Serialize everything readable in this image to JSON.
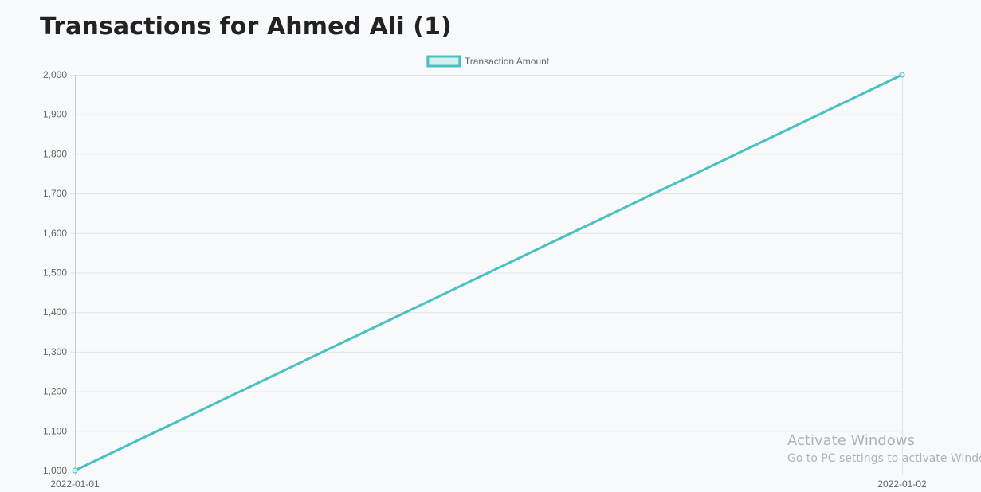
{
  "page": {
    "title": "Transactions for Ahmed Ali (1)"
  },
  "colors": {
    "series_line": "#4bc0c0",
    "series_fill": "#d6f0f0",
    "grid": "#e1e4e8",
    "axis": "#c9cdd2",
    "tick_text": "#666666",
    "legend_text": "#666666"
  },
  "chart_data": {
    "type": "line",
    "title": "",
    "xlabel": "",
    "ylabel": "",
    "x": [
      "2022-01-01",
      "2022-01-02"
    ],
    "series": [
      {
        "name": "Transaction Amount",
        "values": [
          1000,
          2000
        ]
      }
    ],
    "ylim": [
      1000,
      2000
    ],
    "yticks": [
      "1,000",
      "1,100",
      "1,200",
      "1,300",
      "1,400",
      "1,500",
      "1,600",
      "1,700",
      "1,800",
      "1,900",
      "2,000"
    ],
    "ytick_values": [
      1000,
      1100,
      1200,
      1300,
      1400,
      1500,
      1600,
      1700,
      1800,
      1900,
      2000
    ],
    "xticks": [
      "2022-01-01",
      "2022-01-02"
    ],
    "grid": true,
    "legend": "top-center"
  },
  "watermark": {
    "title": "Activate Windows",
    "subtitle": "Go to PC settings to activate Windows."
  }
}
